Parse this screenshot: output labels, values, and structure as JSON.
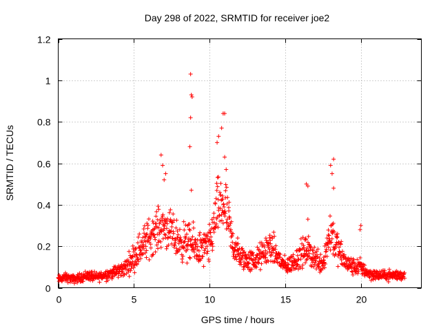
{
  "chart_data": {
    "type": "scatter",
    "title": "Day 298 of 2022, SRMTID for receiver joe2",
    "xlabel": "GPS time / hours",
    "ylabel": "SRMTID / TECUs",
    "xlim": [
      0,
      24
    ],
    "ylim": [
      0,
      1.2
    ],
    "xticks": [
      "0",
      "5",
      "10",
      "15",
      "20"
    ],
    "xtick_values": [
      0,
      5,
      10,
      15,
      20
    ],
    "yticks": [
      "0",
      "0.2",
      "0.4",
      "0.6",
      "0.8",
      "1",
      "1.2"
    ],
    "ytick_values": [
      0,
      0.2,
      0.4,
      0.6,
      0.8,
      1.0,
      1.2
    ],
    "grid": true,
    "marker": "plus",
    "series": [
      {
        "name": "SRMTID",
        "color": "#ff0000",
        "profile": [
          [
            0.0,
            0.04,
            0.03
          ],
          [
            0.5,
            0.05,
            0.03
          ],
          [
            1.0,
            0.04,
            0.03
          ],
          [
            1.5,
            0.05,
            0.03
          ],
          [
            2.0,
            0.06,
            0.04
          ],
          [
            2.5,
            0.05,
            0.03
          ],
          [
            3.0,
            0.06,
            0.04
          ],
          [
            3.5,
            0.07,
            0.04
          ],
          [
            4.0,
            0.08,
            0.05
          ],
          [
            4.5,
            0.1,
            0.06
          ],
          [
            5.0,
            0.15,
            0.1
          ],
          [
            5.5,
            0.2,
            0.12
          ],
          [
            6.0,
            0.24,
            0.14
          ],
          [
            6.5,
            0.28,
            0.14
          ],
          [
            7.0,
            0.3,
            0.14
          ],
          [
            7.5,
            0.26,
            0.14
          ],
          [
            8.0,
            0.22,
            0.13
          ],
          [
            8.5,
            0.22,
            0.14
          ],
          [
            9.0,
            0.2,
            0.13
          ],
          [
            9.5,
            0.18,
            0.13
          ],
          [
            10.0,
            0.2,
            0.14
          ],
          [
            10.5,
            0.38,
            0.2
          ],
          [
            11.0,
            0.4,
            0.22
          ],
          [
            11.5,
            0.22,
            0.14
          ],
          [
            12.0,
            0.15,
            0.09
          ],
          [
            12.5,
            0.13,
            0.08
          ],
          [
            13.0,
            0.13,
            0.08
          ],
          [
            13.5,
            0.16,
            0.1
          ],
          [
            14.0,
            0.2,
            0.12
          ],
          [
            14.5,
            0.15,
            0.09
          ],
          [
            15.0,
            0.1,
            0.06
          ],
          [
            15.5,
            0.12,
            0.07
          ],
          [
            16.0,
            0.16,
            0.1
          ],
          [
            16.5,
            0.18,
            0.1
          ],
          [
            17.0,
            0.14,
            0.09
          ],
          [
            17.5,
            0.12,
            0.08
          ],
          [
            18.0,
            0.28,
            0.18
          ],
          [
            18.5,
            0.18,
            0.11
          ],
          [
            19.0,
            0.12,
            0.07
          ],
          [
            19.5,
            0.1,
            0.06
          ],
          [
            20.0,
            0.1,
            0.06
          ],
          [
            20.5,
            0.07,
            0.04
          ],
          [
            21.0,
            0.06,
            0.04
          ],
          [
            21.5,
            0.06,
            0.03
          ],
          [
            22.0,
            0.06,
            0.04
          ],
          [
            22.5,
            0.06,
            0.04
          ],
          [
            22.9,
            0.06,
            0.03
          ]
        ],
        "peaks": [
          [
            6.8,
            0.64
          ],
          [
            6.9,
            0.59
          ],
          [
            7.0,
            0.52
          ],
          [
            7.1,
            0.55
          ],
          [
            8.75,
            1.03
          ],
          [
            8.8,
            0.93
          ],
          [
            8.85,
            0.92
          ],
          [
            8.75,
            0.82
          ],
          [
            8.7,
            0.68
          ],
          [
            8.8,
            0.47
          ],
          [
            10.5,
            0.7
          ],
          [
            10.6,
            0.73
          ],
          [
            10.8,
            0.77
          ],
          [
            10.9,
            0.84
          ],
          [
            11.0,
            0.84
          ],
          [
            11.0,
            0.63
          ],
          [
            11.1,
            0.57
          ],
          [
            16.4,
            0.5
          ],
          [
            16.5,
            0.49
          ],
          [
            16.5,
            0.33
          ],
          [
            18.0,
            0.59
          ],
          [
            18.1,
            0.55
          ],
          [
            18.2,
            0.62
          ],
          [
            18.2,
            0.48
          ],
          [
            20.0,
            0.3
          ],
          [
            19.95,
            0.28
          ]
        ]
      }
    ]
  }
}
